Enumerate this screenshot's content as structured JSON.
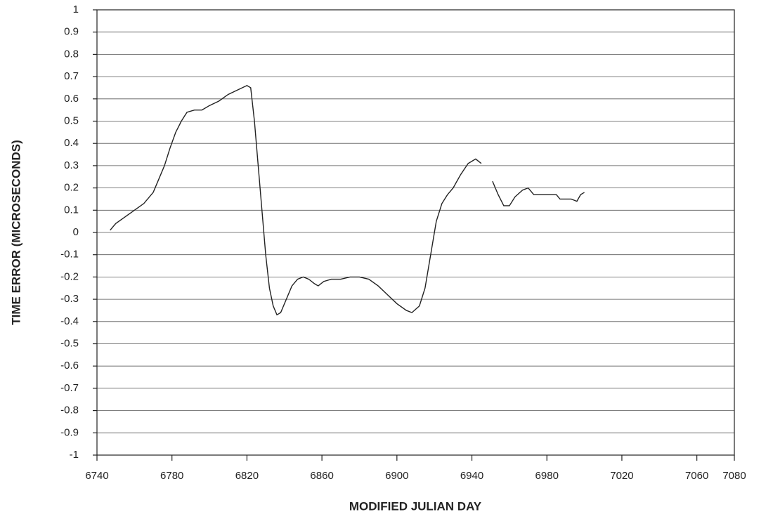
{
  "chart_data": {
    "type": "line",
    "xlabel": "MODIFIED JULIAN DAY",
    "ylabel": "TIME ERROR (MICROSECONDS)",
    "xlim": [
      6740,
      7080
    ],
    "xticks": [
      6740,
      6780,
      6820,
      6860,
      6900,
      6940,
      6980,
      7020,
      7060,
      7080
    ],
    "ylim": [
      -1,
      1
    ],
    "yticks": [
      -1,
      -0.9,
      -0.8,
      -0.7,
      -0.6,
      -0.5,
      -0.4,
      -0.3,
      -0.2,
      -0.1,
      0,
      0.1,
      0.2,
      0.3,
      0.4,
      0.5,
      0.6,
      0.7,
      0.8,
      0.9,
      1
    ],
    "grid": true,
    "series": [
      {
        "color": "#222222",
        "x": [
          6747,
          6750,
          6755,
          6760,
          6765,
          6770,
          6773,
          6776,
          6779,
          6782,
          6785,
          6788,
          6792,
          6796,
          6800,
          6805,
          6810,
          6815,
          6820,
          6822,
          6824,
          6826,
          6828,
          6830,
          6832,
          6834,
          6836,
          6838,
          6841,
          6844,
          6847,
          6850,
          6853,
          6856,
          6858,
          6861,
          6865,
          6870,
          6875,
          6880,
          6885,
          6890,
          6895,
          6900,
          6905,
          6908,
          6912,
          6915,
          6918,
          6921,
          6924,
          6927,
          6930,
          6934,
          6938,
          6942,
          6945,
          6948,
          6951,
          6954,
          6957,
          6960,
          6963,
          6967,
          6970,
          6973,
          6985,
          6987,
          6993,
          6996,
          6998,
          7000
        ],
        "values": [
          0.01,
          0.04,
          0.07,
          0.1,
          0.13,
          0.18,
          0.24,
          0.3,
          0.38,
          0.45,
          0.5,
          0.54,
          0.55,
          0.55,
          0.57,
          0.59,
          0.62,
          0.64,
          0.66,
          0.65,
          0.5,
          0.3,
          0.1,
          -0.1,
          -0.25,
          -0.33,
          -0.37,
          -0.36,
          -0.3,
          -0.24,
          -0.21,
          -0.2,
          -0.21,
          -0.23,
          -0.24,
          -0.22,
          -0.21,
          -0.21,
          -0.2,
          -0.2,
          -0.21,
          -0.24,
          -0.28,
          -0.32,
          -0.35,
          -0.36,
          -0.33,
          -0.25,
          -0.1,
          0.05,
          0.13,
          0.17,
          0.2,
          0.26,
          0.31,
          0.33,
          0.31,
          null,
          0.23,
          0.17,
          0.12,
          0.12,
          0.16,
          0.19,
          0.2,
          0.17,
          0.17,
          0.15,
          0.15,
          0.14,
          0.17,
          0.18
        ]
      }
    ]
  }
}
